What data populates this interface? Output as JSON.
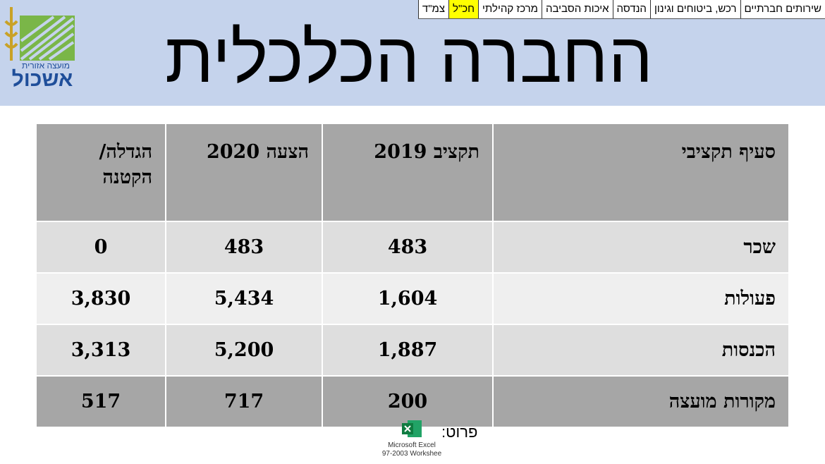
{
  "nav": [
    "שירותים חברתיים",
    "רכש, ביטוחים וגינון",
    "הנדסה",
    "איכות הסביבה",
    "מרכז קהילתי",
    "חכ\"ל",
    "צמ\"ד"
  ],
  "active_nav": 5,
  "logo": {
    "line1": "מועצה אזורית",
    "line2": "אשכול"
  },
  "title": "החברה הכלכלית",
  "table": {
    "header": [
      "סעיף תקציבי",
      "תקציב 2019",
      "הצעה 2020",
      "הגדלה/ הקטנה"
    ],
    "rows": [
      [
        "שכר",
        "483",
        "483",
        "0"
      ],
      [
        "פעולות",
        "1,604",
        "5,434",
        "3,830"
      ],
      [
        "הכנסות",
        "1,887",
        "5,200",
        "3,313"
      ],
      [
        "מקורות מועצה",
        "200",
        "717",
        "517"
      ]
    ]
  },
  "footer": {
    "label": "פרוט:",
    "icon_label": [
      "Microsoft Excel",
      "97-2003 Workshee"
    ]
  }
}
